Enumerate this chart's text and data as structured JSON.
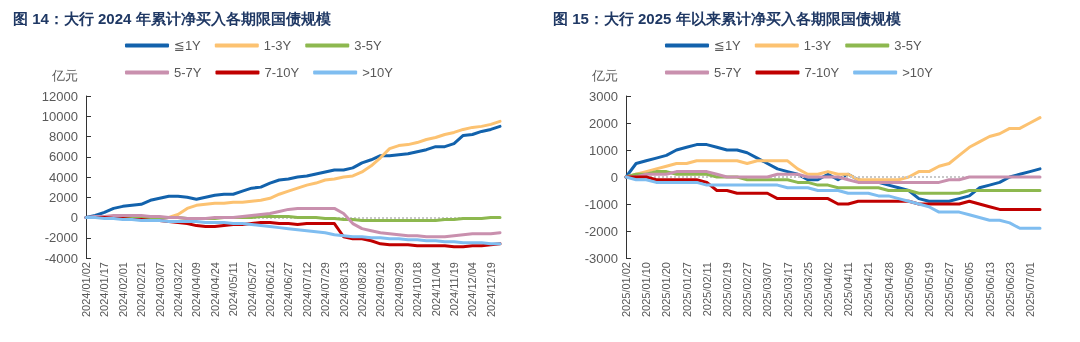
{
  "chart_data": [
    {
      "type": "line",
      "title": "图 14：大行 2024 年累计净买入各期限国债规模",
      "ylabel": "亿元",
      "legend": "top",
      "grid": false,
      "marker": "none",
      "line_style": "solid",
      "categories": [
        "2024/01/02",
        null,
        "2024/01/17",
        null,
        "2024/02/01",
        null,
        "2024/02/21",
        null,
        "2024/03/07",
        null,
        "2024/03/22",
        null,
        "2024/04/09",
        null,
        "2024/04/24",
        null,
        "2024/05/11",
        null,
        "2024/05/27",
        null,
        "2024/06/12",
        null,
        "2024/06/27",
        null,
        "2024/07/12",
        null,
        "2024/07/29",
        null,
        "2024/08/13",
        null,
        "2024/08/28",
        null,
        "2024/09/12",
        null,
        "2024/09/29",
        null,
        "2024/10/18",
        null,
        "2024/11/04",
        null,
        "2024/11/19",
        null,
        "2024/12/04",
        null,
        "2024/12/19",
        null
      ],
      "ylim": [
        -4000,
        12000
      ],
      "yticks": [
        -4000,
        -2000,
        0,
        2000,
        4000,
        6000,
        8000,
        10000,
        12000
      ],
      "ref_lines": [
        {
          "axis": "y",
          "value": 0,
          "color": "#c8c8c8",
          "line_style": "dotted"
        }
      ],
      "series": [
        {
          "name": "≦1Y",
          "color": "#1262ac",
          "values": [
            0,
            200,
            500,
            900,
            1100,
            1200,
            1300,
            1700,
            1900,
            2100,
            2100,
            2000,
            1800,
            2000,
            2200,
            2300,
            2300,
            2600,
            2900,
            3000,
            3400,
            3700,
            3800,
            4000,
            4100,
            4300,
            4500,
            4700,
            4700,
            4900,
            5400,
            5700,
            6100,
            6100,
            6200,
            6300,
            6500,
            6700,
            7000,
            7000,
            7300,
            8100,
            8200,
            8500,
            8700,
            9000
          ]
        },
        {
          "name": "1-3Y",
          "color": "#fcc271",
          "values": [
            null,
            null,
            null,
            null,
            null,
            null,
            null,
            null,
            0,
            0,
            300,
            900,
            1200,
            1300,
            1400,
            1400,
            1500,
            1500,
            1600,
            1700,
            1900,
            2300,
            2600,
            2900,
            3200,
            3400,
            3700,
            3800,
            4000,
            4100,
            4500,
            5100,
            5900,
            6800,
            7100,
            7200,
            7400,
            7700,
            7900,
            8200,
            8400,
            8700,
            8900,
            9000,
            9200,
            9500
          ]
        },
        {
          "name": "3-5Y",
          "color": "#8db84f",
          "values": [
            null,
            null,
            null,
            null,
            0,
            0,
            0,
            0,
            0,
            0,
            0,
            -100,
            -100,
            -100,
            -100,
            0,
            0,
            0,
            0,
            100,
            100,
            100,
            100,
            0,
            0,
            0,
            -100,
            -100,
            -200,
            -200,
            -300,
            -300,
            -300,
            -300,
            -300,
            -300,
            -300,
            -300,
            -300,
            -200,
            -200,
            -100,
            -100,
            -100,
            0,
            0
          ]
        },
        {
          "name": "5-7Y",
          "color": "#c990ae",
          "values": [
            0,
            100,
            100,
            200,
            200,
            200,
            200,
            100,
            100,
            0,
            0,
            -100,
            -100,
            -100,
            0,
            0,
            0,
            100,
            200,
            300,
            400,
            600,
            800,
            900,
            900,
            900,
            900,
            900,
            400,
            -600,
            -1100,
            -1300,
            -1500,
            -1600,
            -1700,
            -1800,
            -1800,
            -1900,
            -1900,
            -1900,
            -1800,
            -1700,
            -1600,
            -1600,
            -1600,
            -1500
          ]
        },
        {
          "name": "7-10Y",
          "color": "#c00000",
          "values": [
            0,
            0,
            0,
            -100,
            -100,
            -200,
            -200,
            -300,
            -300,
            -400,
            -500,
            -600,
            -800,
            -900,
            -900,
            -800,
            -700,
            -700,
            -600,
            -500,
            -500,
            -600,
            -600,
            -700,
            -600,
            -600,
            -600,
            -600,
            -1900,
            -2100,
            -2100,
            -2300,
            -2600,
            -2700,
            -2700,
            -2700,
            -2800,
            -2800,
            -2800,
            -2800,
            -2900,
            -2900,
            -2800,
            -2800,
            -2700,
            -2600
          ]
        },
        {
          "name": ">10Y",
          "color": "#7fbdf0",
          "values": [
            0,
            0,
            -100,
            -100,
            -200,
            -200,
            -300,
            -300,
            -300,
            -400,
            -400,
            -400,
            -400,
            -500,
            -500,
            -500,
            -600,
            -600,
            -700,
            -800,
            -900,
            -1000,
            -1100,
            -1200,
            -1300,
            -1400,
            -1500,
            -1700,
            -1800,
            -1900,
            -1900,
            -2000,
            -2000,
            -2100,
            -2100,
            -2200,
            -2200,
            -2300,
            -2300,
            -2400,
            -2400,
            -2500,
            -2500,
            -2500,
            -2600,
            -2600
          ]
        }
      ]
    },
    {
      "type": "line",
      "title": "图 15：大行 2025 年以来累计净买入各期限国债规模",
      "ylabel": "亿元",
      "legend": "top",
      "grid": false,
      "marker": "none",
      "line_style": "solid",
      "categories": [
        "2025/01/02",
        null,
        "2025/01/10",
        null,
        "2025/01/20",
        null,
        "2025/01/27",
        null,
        "2025/02/11",
        null,
        "2025/02/19",
        null,
        "2025/02/27",
        null,
        "2025/03/07",
        null,
        "2025/03/17",
        null,
        "2025/03/25",
        null,
        "2025/04/02",
        null,
        "2025/04/11",
        null,
        "2025/04/21",
        null,
        "2025/04/28",
        null,
        "2025/05/09",
        null,
        "2025/05/19",
        null,
        "2025/05/27",
        null,
        "2025/06/05",
        null,
        "2025/06/13",
        null,
        "2025/06/23",
        null,
        "2025/07/01",
        null
      ],
      "ylim": [
        -3000,
        3000
      ],
      "yticks": [
        -3000,
        -2000,
        -1000,
        0,
        1000,
        2000,
        3000
      ],
      "ref_lines": [
        {
          "axis": "y",
          "value": 0,
          "color": "#c8c8c8",
          "line_style": "dotted"
        }
      ],
      "series": [
        {
          "name": "≦1Y",
          "color": "#1262ac",
          "values": [
            0,
            500,
            600,
            700,
            800,
            1000,
            1100,
            1200,
            1200,
            1100,
            1000,
            1000,
            900,
            700,
            500,
            300,
            200,
            100,
            -100,
            -100,
            100,
            -100,
            100,
            -100,
            -200,
            -200,
            -300,
            -400,
            -500,
            -800,
            -900,
            -900,
            -900,
            -800,
            -700,
            -400,
            -300,
            -200,
            0,
            100,
            200,
            300
          ]
        },
        {
          "name": "1-3Y",
          "color": "#fcc271",
          "values": [
            0,
            100,
            200,
            300,
            400,
            500,
            500,
            600,
            600,
            600,
            600,
            600,
            500,
            600,
            600,
            600,
            600,
            300,
            100,
            100,
            200,
            100,
            100,
            -100,
            -100,
            -100,
            -100,
            -100,
            0,
            200,
            200,
            400,
            500,
            800,
            1100,
            1300,
            1500,
            1600,
            1800,
            1800,
            2000,
            2200
          ]
        },
        {
          "name": "3-5Y",
          "color": "#8db84f",
          "values": [
            0,
            100,
            100,
            200,
            200,
            100,
            100,
            100,
            100,
            0,
            0,
            0,
            -100,
            -100,
            -100,
            -100,
            -100,
            -200,
            -200,
            -300,
            -300,
            -400,
            -400,
            -400,
            -400,
            -400,
            -500,
            -500,
            -500,
            -600,
            -600,
            -600,
            -600,
            -600,
            -500,
            -500,
            -500,
            -500,
            -500,
            -500,
            -500,
            -500
          ]
        },
        {
          "name": "5-7Y",
          "color": "#c990ae",
          "values": [
            0,
            0,
            100,
            100,
            100,
            200,
            200,
            200,
            200,
            100,
            0,
            0,
            0,
            0,
            0,
            100,
            100,
            100,
            0,
            0,
            0,
            0,
            -100,
            -200,
            -200,
            -200,
            -200,
            -200,
            -200,
            -200,
            -200,
            -200,
            -100,
            -100,
            0,
            0,
            0,
            0,
            0,
            0,
            0,
            0
          ]
        },
        {
          "name": "7-10Y",
          "color": "#c00000",
          "values": [
            0,
            0,
            0,
            -100,
            -100,
            -100,
            -100,
            -100,
            -200,
            -500,
            -500,
            -600,
            -600,
            -600,
            -600,
            -800,
            -800,
            -800,
            -800,
            -800,
            -800,
            -1000,
            -1000,
            -900,
            -900,
            -900,
            -900,
            -900,
            -900,
            -1000,
            -1000,
            -1000,
            -1000,
            -1000,
            -900,
            -1000,
            -1100,
            -1200,
            -1200,
            -1200,
            -1200,
            -1200
          ]
        },
        {
          "name": ">10Y",
          "color": "#7fbdf0",
          "values": [
            0,
            -100,
            -100,
            -200,
            -200,
            -200,
            -200,
            -200,
            -300,
            -300,
            -300,
            -300,
            -300,
            -300,
            -300,
            -300,
            -400,
            -400,
            -400,
            -500,
            -500,
            -500,
            -600,
            -600,
            -600,
            -700,
            -700,
            -800,
            -900,
            -1000,
            -1100,
            -1300,
            -1300,
            -1300,
            -1400,
            -1500,
            -1600,
            -1600,
            -1700,
            -1900,
            -1900,
            -1900
          ]
        }
      ]
    }
  ]
}
